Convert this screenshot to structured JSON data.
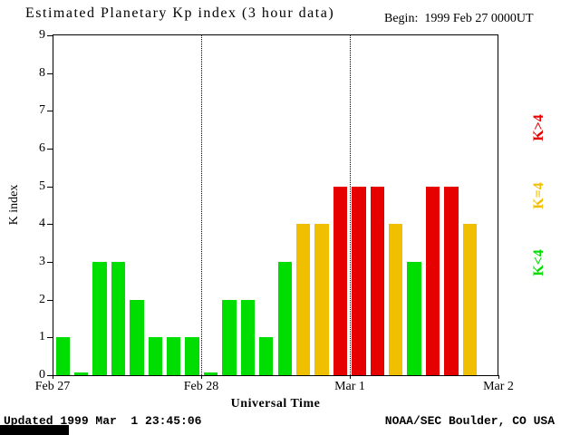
{
  "header": {
    "begin_label": "Begin:  1999 Feb 27 0000UT"
  },
  "chart_data": {
    "type": "bar",
    "title": "Estimated Planetary Kp index (3 hour data)",
    "xlabel": "Universal Time",
    "ylabel": "K index",
    "ylim": [
      0,
      9
    ],
    "y_ticks": [
      0,
      1,
      2,
      3,
      4,
      5,
      6,
      7,
      8,
      9
    ],
    "x_ticks": [
      "Feb 27",
      "Feb 28",
      "Mar 1",
      "Mar 2"
    ],
    "days": 3,
    "bars_per_day": 8,
    "grid": "off",
    "values": [
      1,
      0,
      3,
      3,
      2,
      1,
      1,
      1,
      0,
      2,
      2,
      1,
      3,
      4,
      4,
      5,
      5,
      5,
      4,
      3,
      5,
      5,
      4
    ],
    "color_rule": {
      "lt4": "#00dd00",
      "eq4": "#f0c000",
      "gt4": "#e60000"
    },
    "legend": [
      {
        "label": "K>4",
        "color": "#e60000"
      },
      {
        "label": "K=4",
        "color": "#f0c000"
      },
      {
        "label": "K<4",
        "color": "#00dd00"
      }
    ],
    "legend_position": "right"
  },
  "footer": {
    "updated": "Updated 1999 Mar  1 23:45:06",
    "credit": "NOAA/SEC Boulder, CO USA"
  }
}
